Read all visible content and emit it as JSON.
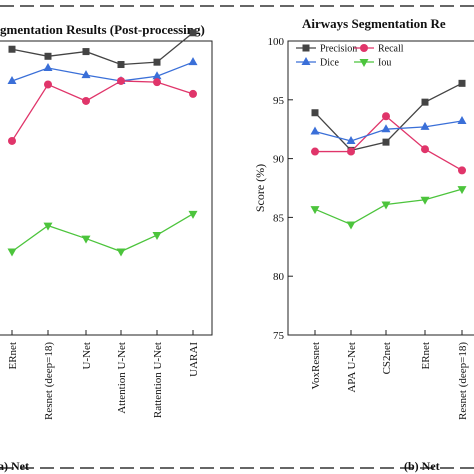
{
  "dashes": {
    "color": "#333333"
  },
  "chart_data": [
    {
      "type": "line",
      "title": "gmentation Results (Post-processing)",
      "caption": "a) Net",
      "categories": [
        "ERnet",
        "Resnet (deep=18)",
        "U-Net",
        "Attention U-Net",
        "Rattention U-Net",
        "UARAI"
      ],
      "ylim": [
        75,
        100
      ],
      "series": [
        {
          "name": "Precision",
          "color": "#444444",
          "marker": "square",
          "values": [
            99.3,
            98.7,
            99.1,
            98.0,
            98.2,
            100.7
          ]
        },
        {
          "name": "Dice",
          "color": "#3a6fd8",
          "marker": "triangle-up",
          "values": [
            96.6,
            97.7,
            97.1,
            96.6,
            97.0,
            98.2
          ]
        },
        {
          "name": "Recall",
          "color": "#e0356a",
          "marker": "circle",
          "values": [
            91.5,
            96.3,
            94.9,
            96.6,
            96.5,
            95.5
          ]
        },
        {
          "name": "Iou",
          "color": "#4cc43c",
          "marker": "triangle-down",
          "values": [
            82.1,
            84.3,
            83.2,
            82.1,
            83.5,
            85.3
          ]
        }
      ]
    },
    {
      "type": "line",
      "title": "Airways Segmentation Re",
      "caption": "(b) Net",
      "ylabel": "Score (%)",
      "categories": [
        "VoxResnet",
        "APA U-Net",
        "CS2net",
        "ERnet",
        "Resnet (deep=18)"
      ],
      "ylim": [
        75,
        100
      ],
      "yticks": [
        75,
        80,
        85,
        90,
        95,
        100
      ],
      "legend": "top",
      "series": [
        {
          "name": "Precision",
          "color": "#444444",
          "marker": "square",
          "values": [
            93.9,
            90.7,
            91.4,
            94.8,
            96.4
          ]
        },
        {
          "name": "Recall",
          "color": "#e0356a",
          "marker": "circle",
          "values": [
            90.6,
            90.6,
            93.6,
            90.8,
            89.0
          ]
        },
        {
          "name": "Dice",
          "color": "#3a6fd8",
          "marker": "triangle-up",
          "values": [
            92.3,
            91.5,
            92.5,
            92.7,
            93.2
          ]
        },
        {
          "name": "Iou",
          "color": "#4cc43c",
          "marker": "triangle-down",
          "values": [
            85.7,
            84.4,
            86.1,
            86.5,
            87.4
          ]
        }
      ]
    }
  ]
}
